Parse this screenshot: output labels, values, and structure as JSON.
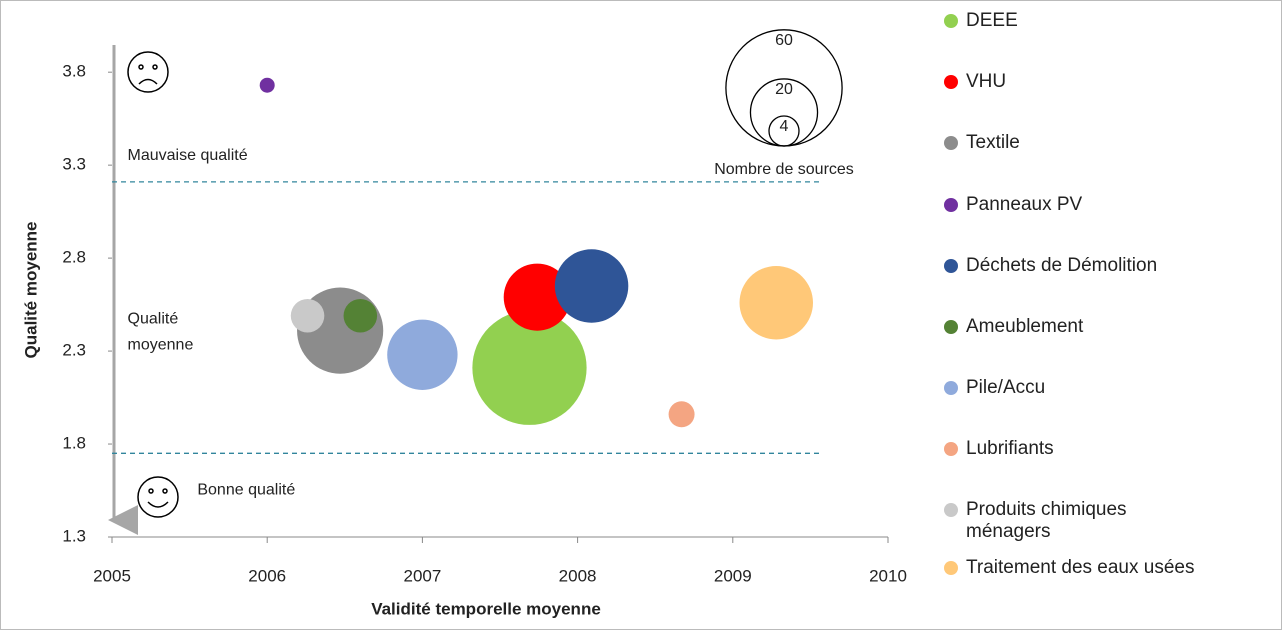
{
  "chart_data": {
    "type": "bubble",
    "xlabel": "Validité temporelle moyenne",
    "ylabel": "Qualité moyenne",
    "xlim": [
      2005,
      2010
    ],
    "xticks": [
      2005,
      2006,
      2007,
      2008,
      2009,
      2010
    ],
    "ylim": [
      1.3,
      4.0
    ],
    "yticks": [
      1.3,
      1.8,
      2.3,
      2.8,
      3.3,
      3.8
    ],
    "grid": false,
    "legend": "right",
    "series": [
      {
        "name": "DEEE",
        "color": "#92d050",
        "x": [
          2007.69
        ],
        "values": [
          2.21
        ],
        "sizes": [
          58
        ]
      },
      {
        "name": "VHU",
        "color": "#ff0000",
        "x": [
          2007.74
        ],
        "values": [
          2.59
        ],
        "sizes": [
          20
        ]
      },
      {
        "name": "Textile",
        "color": "#8c8c8c",
        "x": [
          2006.47
        ],
        "values": [
          2.41
        ],
        "sizes": [
          33
        ]
      },
      {
        "name": "Panneaux PV",
        "color": "#7030a0",
        "x": [
          2006.0
        ],
        "values": [
          3.73
        ],
        "sizes": [
          1
        ]
      },
      {
        "name": "Déchets de Démolition",
        "color": "#2f5597",
        "x": [
          2008.09
        ],
        "values": [
          2.65
        ],
        "sizes": [
          24
        ]
      },
      {
        "name": "Ameublement",
        "color": "#548235",
        "x": [
          2006.6
        ],
        "values": [
          2.49
        ],
        "sizes": [
          5
        ]
      },
      {
        "name": "Pile/Accu",
        "color": "#8faadc",
        "x": [
          2007.0
        ],
        "values": [
          2.28
        ],
        "sizes": [
          22
        ]
      },
      {
        "name": "Lubrifiants",
        "color": "#f4a582",
        "x": [
          2008.67
        ],
        "values": [
          1.96
        ],
        "sizes": [
          3
        ]
      },
      {
        "name": "Produits chimiques ménagers",
        "color": "#c9c9c9",
        "x": [
          2006.26
        ],
        "values": [
          2.49
        ],
        "sizes": [
          5
        ]
      },
      {
        "name": "Traitement des eaux usées",
        "color": "#ffc878",
        "x": [
          2009.28
        ],
        "values": [
          2.56
        ],
        "sizes": [
          24
        ]
      }
    ],
    "reference_lines": [
      3.21,
      1.75
    ],
    "reference_color": "#31859c",
    "annotations": [
      {
        "lines": [
          "Mauvaise qualité"
        ],
        "x": 2005.1,
        "y": 3.35
      },
      {
        "lines": [
          "Qualité",
          "moyenne"
        ],
        "x": 2005.1,
        "y": 2.47
      },
      {
        "lines": [
          "Bonne qualité"
        ],
        "x": 2005.55,
        "y": 1.55
      }
    ],
    "size_legend": {
      "sizes": [
        60,
        20,
        4
      ],
      "label": "Nombre de sources"
    }
  }
}
